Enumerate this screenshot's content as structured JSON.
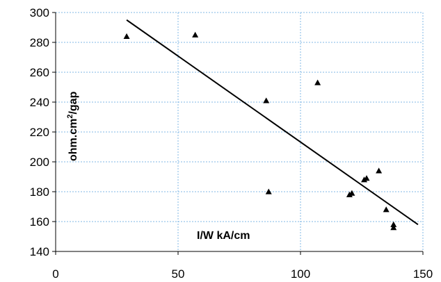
{
  "chart_data": {
    "type": "scatter",
    "title": "",
    "xlabel": "I/W kA/cm",
    "ylabel_main": "ohm.cm",
    "ylabel_sup": "2",
    "ylabel_tail": "/gap",
    "xlim": [
      0,
      150
    ],
    "ylim": [
      140,
      300
    ],
    "xticks": [
      0,
      50,
      100,
      150
    ],
    "yticks": [
      140,
      160,
      180,
      200,
      220,
      240,
      260,
      280,
      300
    ],
    "grid": true,
    "legend": "none",
    "marker": "triangle",
    "marker_color": "#000000",
    "grid_color": "#7fb7e6",
    "points": [
      {
        "x": 29,
        "y": 284
      },
      {
        "x": 57,
        "y": 285
      },
      {
        "x": 86,
        "y": 241
      },
      {
        "x": 87,
        "y": 180
      },
      {
        "x": 107,
        "y": 253
      },
      {
        "x": 120,
        "y": 178
      },
      {
        "x": 121,
        "y": 179
      },
      {
        "x": 126,
        "y": 188
      },
      {
        "x": 127,
        "y": 189
      },
      {
        "x": 132,
        "y": 194
      },
      {
        "x": 135,
        "y": 168
      },
      {
        "x": 138,
        "y": 158
      },
      {
        "x": 138,
        "y": 156
      }
    ],
    "trendline": {
      "x1": 29,
      "y1": 295,
      "x2": 148,
      "y2": 158
    }
  }
}
